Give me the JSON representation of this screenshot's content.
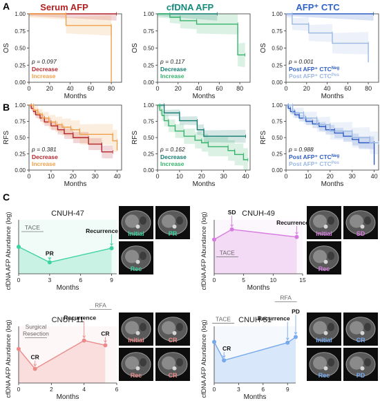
{
  "panel_letters": [
    "A",
    "B",
    "C"
  ],
  "colors": {
    "serum_decrease": "#b2242a",
    "serum_increase": "#f0a04a",
    "cfdna_decrease": "#117a6e",
    "cfdna_increase": "#35b36b",
    "ctc_neg": "#2d5cc2",
    "ctc_pos": "#9ab8e2",
    "title_serum": "#b22222",
    "title_cfdna": "#138a7a",
    "title_ctc": "#2e62c8",
    "case_47": "#3bd3a0",
    "case_49": "#d77be0",
    "case_11": "#ec8a8a",
    "case_51": "#76a8ee"
  },
  "column_titles": [
    "Serum AFP",
    "cfDNA AFP",
    "AFP⁺ CTC"
  ],
  "chart_data": [
    {
      "type": "line",
      "panel": "A",
      "title": "Serum AFP",
      "xlabel": "Months",
      "ylabel": "OS",
      "xlim": [
        0,
        90
      ],
      "ylim": [
        0,
        1.0
      ],
      "xticks": [
        0,
        20,
        40,
        60,
        80
      ],
      "yticks": [
        0,
        0.25,
        0.5,
        0.75,
        1.0
      ],
      "p_value": "p = 0.097",
      "series": [
        {
          "name": "Decrease",
          "x": [
            0,
            85
          ],
          "y": [
            1.0,
            1.0
          ]
        },
        {
          "name": "Increase",
          "x": [
            0,
            36,
            36,
            80,
            80
          ],
          "y": [
            1.0,
            1.0,
            0.83,
            0.83,
            0
          ]
        }
      ]
    },
    {
      "type": "line",
      "panel": "A",
      "title": "cfDNA AFP",
      "xlabel": "Months",
      "ylabel": "OS",
      "xlim": [
        0,
        90
      ],
      "ylim": [
        0,
        1.0
      ],
      "xticks": [
        0,
        20,
        40,
        60,
        80
      ],
      "yticks": [
        0,
        0.25,
        0.5,
        0.75,
        1.0
      ],
      "p_value": "p = 0.117",
      "series": [
        {
          "name": "Decrease",
          "x": [
            0,
            58
          ],
          "y": [
            1.0,
            1.0
          ]
        },
        {
          "name": "Increase",
          "x": [
            0,
            12,
            12,
            22,
            22,
            38,
            38,
            78,
            78,
            85
          ],
          "y": [
            1.0,
            1.0,
            0.95,
            0.95,
            0.9,
            0.9,
            0.85,
            0.85,
            0.4,
            0.4
          ]
        }
      ]
    },
    {
      "type": "line",
      "panel": "A",
      "title": "AFP⁺ CTC",
      "xlabel": "Months",
      "ylabel": "OS",
      "xlim": [
        0,
        90
      ],
      "ylim": [
        0,
        1.0
      ],
      "xticks": [
        0,
        20,
        40,
        60,
        80
      ],
      "yticks": [
        0,
        0.25,
        0.5,
        0.75,
        1.0
      ],
      "p_value": "p = 0.001",
      "series": [
        {
          "name": "Post AFP⁺ CTCNeg",
          "x": [
            0,
            85
          ],
          "y": [
            1.0,
            1.0
          ]
        },
        {
          "name": "Post AFP⁺ CTCPos",
          "x": [
            0,
            6,
            6,
            22,
            22,
            45,
            45,
            80,
            80
          ],
          "y": [
            1.0,
            1.0,
            0.85,
            0.85,
            0.72,
            0.72,
            0.57,
            0.57,
            0.29
          ]
        }
      ]
    },
    {
      "type": "line",
      "panel": "B",
      "title": "",
      "xlabel": "Months",
      "ylabel": "RFS",
      "xlim": [
        0,
        42
      ],
      "ylim": [
        0,
        1.0
      ],
      "xticks": [
        0,
        10,
        20,
        30,
        40
      ],
      "yticks": [
        0,
        0.25,
        0.5,
        0.75,
        1.0
      ],
      "p_value": "p = 0.381",
      "series": [
        {
          "name": "Decrease",
          "x": [
            0,
            1,
            1,
            2,
            2,
            3,
            3,
            5,
            5,
            7,
            7,
            10,
            10,
            13,
            13,
            16,
            16,
            20,
            20,
            27,
            27,
            33,
            33,
            38
          ],
          "y": [
            1.0,
            1.0,
            0.95,
            0.95,
            0.9,
            0.9,
            0.85,
            0.85,
            0.8,
            0.8,
            0.74,
            0.74,
            0.68,
            0.68,
            0.62,
            0.62,
            0.56,
            0.56,
            0.5,
            0.5,
            0.4,
            0.4,
            0.28,
            0.28
          ]
        },
        {
          "name": "Increase",
          "x": [
            0,
            2,
            2,
            4,
            4,
            6,
            6,
            9,
            9,
            12,
            12,
            15,
            15,
            19,
            19,
            23,
            23,
            38,
            38,
            40,
            40
          ],
          "y": [
            1.0,
            1.0,
            0.92,
            0.92,
            0.86,
            0.86,
            0.8,
            0.8,
            0.74,
            0.74,
            0.7,
            0.7,
            0.66,
            0.66,
            0.62,
            0.62,
            0.55,
            0.55,
            0.45,
            0.45,
            0.3
          ]
        }
      ]
    },
    {
      "type": "line",
      "panel": "B",
      "title": "",
      "xlabel": "Months",
      "ylabel": "RFS",
      "xlim": [
        0,
        42
      ],
      "ylim": [
        0,
        1.0
      ],
      "xticks": [
        0,
        10,
        20,
        30,
        40
      ],
      "yticks": [
        0,
        0.25,
        0.5,
        0.75,
        1.0
      ],
      "p_value": "p = 0.162",
      "series": [
        {
          "name": "Decrease",
          "x": [
            0,
            3,
            3,
            10,
            10,
            18,
            18,
            21,
            21,
            40
          ],
          "y": [
            1.0,
            1.0,
            0.88,
            0.88,
            0.76,
            0.76,
            0.62,
            0.62,
            0.52,
            0.52
          ]
        },
        {
          "name": "Increase",
          "x": [
            0,
            1,
            1,
            2,
            2,
            3,
            3,
            5,
            5,
            8,
            8,
            12,
            12,
            17,
            17,
            20,
            20,
            23,
            23,
            32,
            32,
            35,
            35,
            39,
            39,
            41
          ],
          "y": [
            1.0,
            1.0,
            0.92,
            0.92,
            0.84,
            0.84,
            0.76,
            0.76,
            0.68,
            0.68,
            0.6,
            0.6,
            0.52,
            0.52,
            0.46,
            0.46,
            0.42,
            0.42,
            0.36,
            0.36,
            0.3,
            0.3,
            0.24,
            0.24,
            0.16,
            0.16
          ]
        }
      ]
    },
    {
      "type": "line",
      "panel": "B",
      "title": "",
      "xlabel": "Months",
      "ylabel": "RFS",
      "xlim": [
        0,
        42
      ],
      "ylim": [
        0,
        1.0
      ],
      "xticks": [
        0,
        10,
        20,
        30,
        40
      ],
      "yticks": [
        0,
        0.25,
        0.5,
        0.75,
        1.0
      ],
      "p_value": "p = 0.988",
      "series": [
        {
          "name": "Post AFP⁺ CTCNeg",
          "x": [
            0,
            1,
            1,
            2,
            2,
            4,
            4,
            6,
            6,
            9,
            9,
            12,
            12,
            15,
            15,
            18,
            18,
            22,
            22,
            26,
            26,
            30,
            30,
            33,
            33,
            40,
            40
          ],
          "y": [
            1.0,
            1.0,
            0.95,
            0.95,
            0.9,
            0.9,
            0.85,
            0.85,
            0.8,
            0.8,
            0.75,
            0.75,
            0.71,
            0.71,
            0.67,
            0.67,
            0.62,
            0.62,
            0.57,
            0.57,
            0.52,
            0.52,
            0.47,
            0.47,
            0.42,
            0.42,
            0.08
          ]
        },
        {
          "name": "Post AFP⁺ CTCPos",
          "x": [
            0,
            3,
            3,
            8,
            8,
            14,
            14,
            20,
            20,
            30,
            30,
            38,
            38,
            42
          ],
          "y": [
            1.0,
            1.0,
            0.88,
            0.88,
            0.8,
            0.8,
            0.7,
            0.7,
            0.6,
            0.6,
            0.5,
            0.5,
            0.42,
            0.42
          ]
        }
      ]
    },
    {
      "type": "line",
      "panel": "C",
      "title": "CNUH-47",
      "xlabel": "Months",
      "ylabel": "cfDNA AFP Abundance (log)",
      "xlim": [
        0,
        9.5
      ],
      "xticks": [
        0,
        3,
        6,
        9
      ],
      "series": [
        {
          "name": "CNUH-47",
          "x": [
            0,
            3,
            9
          ],
          "y": [
            0.4,
            0.17,
            0.38
          ]
        }
      ],
      "annotations": [
        {
          "text": "TACE",
          "x": 0.8
        },
        {
          "text": "PR",
          "x": 3
        },
        {
          "text": "Recurrence",
          "x": 9
        }
      ]
    },
    {
      "type": "line",
      "panel": "C",
      "title": "CNUH-49",
      "xlabel": "Months",
      "ylabel": "cfDNA AFP Abundance (log)",
      "xlim": [
        0,
        15
      ],
      "xticks": [
        0,
        5,
        10,
        15
      ],
      "series": [
        {
          "name": "CNUH-49",
          "x": [
            0,
            3,
            14
          ],
          "y": [
            0.54,
            0.7,
            0.58
          ]
        }
      ],
      "annotations": [
        {
          "text": "SD",
          "x": 3
        },
        {
          "text": "TACE",
          "x": 1.5
        },
        {
          "text": "Recurrence",
          "x": 14
        }
      ]
    },
    {
      "type": "line",
      "panel": "C",
      "title": "CNUH-11",
      "xlabel": "Months",
      "ylabel": "cfDNA AFP Abundance (log)",
      "xlim": [
        0,
        6
      ],
      "xticks": [
        0,
        2,
        4,
        6
      ],
      "series": [
        {
          "name": "CNUH-11",
          "x": [
            0,
            1,
            4,
            5.3
          ],
          "y": [
            0.36,
            0.15,
            0.45,
            0.4
          ]
        }
      ],
      "annotations": [
        {
          "text": "Surgical Resection",
          "x": 0.8
        },
        {
          "text": "CR",
          "x": 1
        },
        {
          "text": "RFA",
          "x": 4.5
        },
        {
          "text": "Recurrence",
          "x": 4
        },
        {
          "text": "CR",
          "x": 5.3
        }
      ]
    },
    {
      "type": "line",
      "panel": "C",
      "title": "CNUH-51",
      "xlabel": "Months",
      "ylabel": "cfDNA AFP Abundance (log)",
      "xlim": [
        0,
        10
      ],
      "xticks": [
        0,
        3,
        6,
        9
      ],
      "series": [
        {
          "name": "CNUH-51",
          "x": [
            0,
            1.2,
            9,
            10
          ],
          "y": [
            0.58,
            0.32,
            0.57,
            0.65
          ]
        }
      ],
      "annotations": [
        {
          "text": "TACE",
          "x": 0.6
        },
        {
          "text": "CR",
          "x": 1.2
        },
        {
          "text": "RFA",
          "x": 9.8
        },
        {
          "text": "Recurrence",
          "x": 9
        },
        {
          "text": "PD",
          "x": 10
        }
      ]
    }
  ],
  "scans": [
    {
      "case": "CNUH-47",
      "labels": [
        "Initial",
        "PR",
        "Rec"
      ]
    },
    {
      "case": "CNUH-49",
      "labels": [
        "Initial",
        "SD",
        "Rec"
      ]
    },
    {
      "case": "CNUH-11",
      "labels": [
        "Initial",
        "CR",
        "Rec",
        "CR"
      ]
    },
    {
      "case": "CNUH-51",
      "labels": [
        "Initial",
        "CR",
        "Rec",
        "PD"
      ]
    }
  ]
}
